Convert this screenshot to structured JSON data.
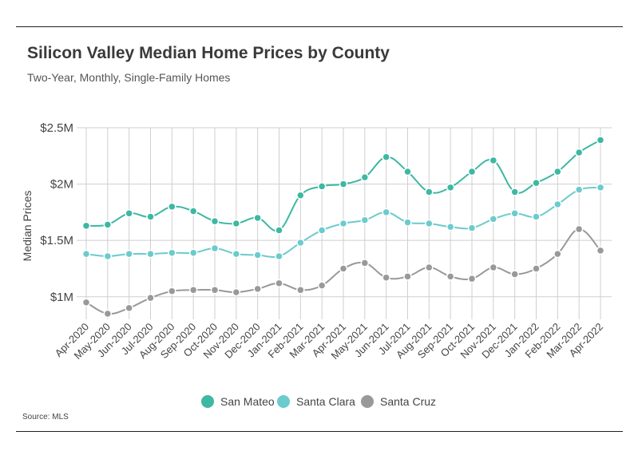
{
  "header": {
    "title": "Silicon Valley Median Home Prices by County",
    "subtitle": "Two-Year, Monthly, Single-Family Homes"
  },
  "footer": {
    "source": "Source:  MLS"
  },
  "chart_data": {
    "type": "line",
    "title": "Silicon Valley Median Home Prices by County",
    "subtitle": "Two-Year, Monthly, Single-Family Homes",
    "xlabel": "",
    "ylabel": "Median Prices",
    "ylim": [
      0.8,
      2.5
    ],
    "yticks": [
      1.0,
      1.5,
      2.0,
      2.5
    ],
    "ytick_labels": [
      "$1M",
      "$1.5M",
      "$2M",
      "$2.5M"
    ],
    "grid": true,
    "legend_position": "bottom",
    "categories": [
      "Apr-2020",
      "May-2020",
      "Jun-2020",
      "Jul-2020",
      "Aug-2020",
      "Sep-2020",
      "Oct-2020",
      "Nov-2020",
      "Dec-2020",
      "Jan-2021",
      "Feb-2021",
      "Mar-2021",
      "Apr-2021",
      "May-2021",
      "Jun-2021",
      "Jul-2021",
      "Aug-2021",
      "Sep-2021",
      "Oct-2021",
      "Nov-2021",
      "Dec-2021",
      "Jan-2022",
      "Feb-2022",
      "Mar-2022",
      "Apr-2022"
    ],
    "series": [
      {
        "name": "San Mateo",
        "color": "#3db8a2",
        "values": [
          1.63,
          1.64,
          1.74,
          1.71,
          1.8,
          1.76,
          1.67,
          1.65,
          1.7,
          1.59,
          1.9,
          1.98,
          2.0,
          2.06,
          2.24,
          2.11,
          1.93,
          1.97,
          2.11,
          2.21,
          1.93,
          2.01,
          2.11,
          2.28,
          2.39
        ]
      },
      {
        "name": "Santa Clara",
        "color": "#6ccbcc",
        "values": [
          1.38,
          1.36,
          1.38,
          1.38,
          1.39,
          1.39,
          1.43,
          1.38,
          1.37,
          1.36,
          1.48,
          1.59,
          1.65,
          1.68,
          1.75,
          1.66,
          1.65,
          1.62,
          1.61,
          1.69,
          1.74,
          1.71,
          1.82,
          1.95,
          1.97
        ]
      },
      {
        "name": "Santa Cruz",
        "color": "#999999",
        "values": [
          0.95,
          0.85,
          0.9,
          0.99,
          1.05,
          1.06,
          1.06,
          1.04,
          1.07,
          1.12,
          1.06,
          1.1,
          1.25,
          1.3,
          1.17,
          1.18,
          1.26,
          1.18,
          1.16,
          1.26,
          1.2,
          1.25,
          1.38,
          1.6,
          1.41
        ]
      }
    ]
  }
}
